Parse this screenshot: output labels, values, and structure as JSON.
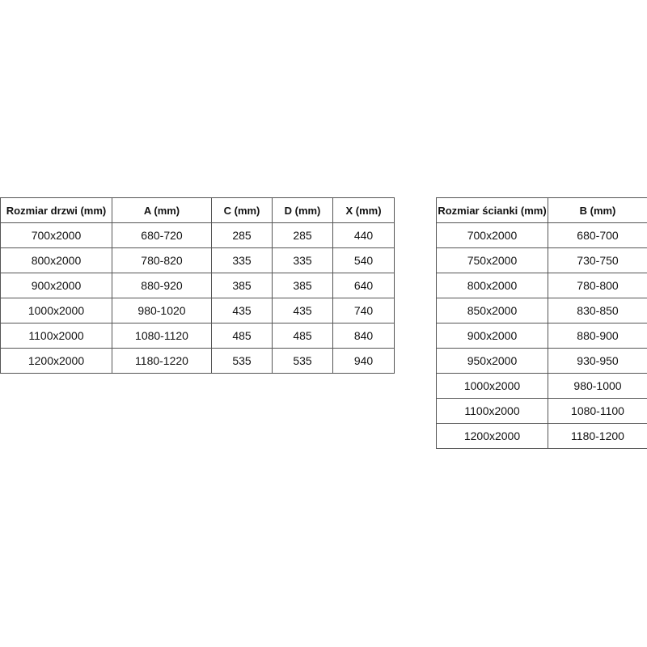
{
  "door_table": {
    "headers": [
      "Rozmiar drzwi (mm)",
      "A (mm)",
      "C (mm)",
      "D (mm)",
      "X (mm)"
    ],
    "rows": [
      [
        "700x2000",
        "680-720",
        "285",
        "285",
        "440"
      ],
      [
        "800x2000",
        "780-820",
        "335",
        "335",
        "540"
      ],
      [
        "900x2000",
        "880-920",
        "385",
        "385",
        "640"
      ],
      [
        "1000x2000",
        "980-1020",
        "435",
        "435",
        "740"
      ],
      [
        "1100x2000",
        "1080-1120",
        "485",
        "485",
        "840"
      ],
      [
        "1200x2000",
        "1180-1220",
        "535",
        "535",
        "940"
      ]
    ]
  },
  "wall_table": {
    "headers": [
      "Rozmiar ścianki (mm)",
      "B (mm)"
    ],
    "rows": [
      [
        "700x2000",
        "680-700"
      ],
      [
        "750x2000",
        "730-750"
      ],
      [
        "800x2000",
        "780-800"
      ],
      [
        "850x2000",
        "830-850"
      ],
      [
        "900x2000",
        "880-900"
      ],
      [
        "950x2000",
        "930-950"
      ],
      [
        "1000x2000",
        "980-1000"
      ],
      [
        "1100x2000",
        "1080-1100"
      ],
      [
        "1200x2000",
        "1180-1200"
      ]
    ]
  }
}
